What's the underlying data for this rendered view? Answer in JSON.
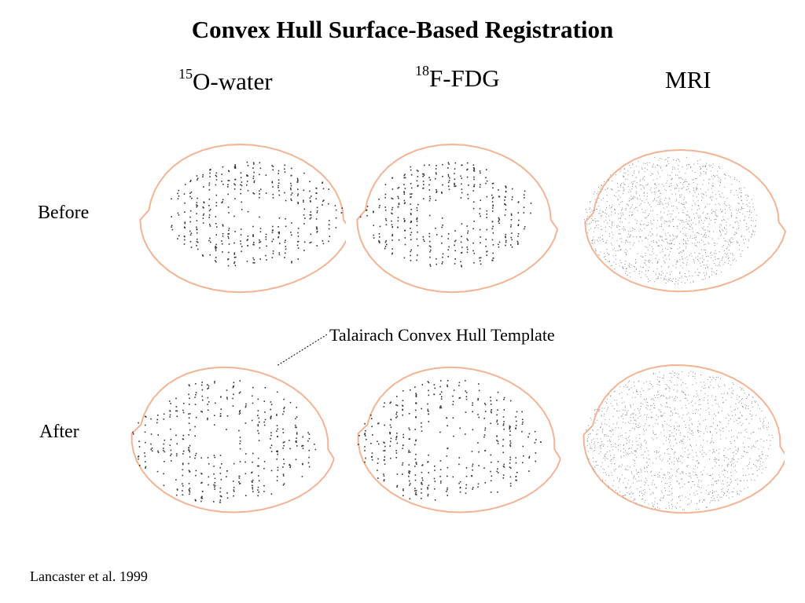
{
  "slide": {
    "title": "Convex Hull Surface-Based Registration",
    "columns": [
      {
        "sup": "15",
        "label": "O-water"
      },
      {
        "sup": "18",
        "label": "F-FDG"
      },
      {
        "sup": "",
        "label": "MRI"
      }
    ],
    "rows": [
      {
        "label": "Before"
      },
      {
        "label": "After"
      }
    ],
    "annotation": "Talairach Convex Hull Template",
    "citation": "Lancaster et al. 1999"
  },
  "colors": {
    "hull_outline": "#f4b393",
    "dots": "#333333",
    "mri_dots": "#8a8a8a",
    "text": "#000000"
  }
}
